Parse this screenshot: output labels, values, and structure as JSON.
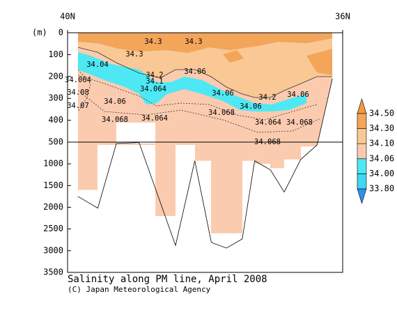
{
  "chart_data": {
    "type": "contour",
    "title": "Salinity along PM line, April 2008",
    "credit": "(C) Japan Meteorological Agency",
    "y_label": "(m)",
    "xlim": [
      40,
      36
    ],
    "xticks": [
      {
        "value": 40,
        "label": "40N"
      },
      {
        "value": 36,
        "label": "36N"
      }
    ],
    "ylim": [
      0,
      3500
    ],
    "yticks": [
      0,
      100,
      200,
      300,
      400,
      500,
      1000,
      1500,
      2000,
      2500,
      3000,
      3500
    ],
    "bottom_profile": {
      "x": [
        39.85,
        39.56,
        39.29,
        38.96,
        38.43,
        38.15,
        37.91,
        37.69,
        37.46,
        37.28,
        37.05,
        36.85,
        36.61,
        36.37,
        36.15
      ],
      "values": [
        1750,
        2020,
        530,
        510,
        2880,
        930,
        2810,
        2940,
        2730,
        930,
        1140,
        1650,
        900,
        560,
        210
      ]
    },
    "contour_labels": [
      34.3,
      34.3,
      34.3,
      34.04,
      34.2,
      34.1,
      34.064,
      34.06,
      34.06,
      34.06,
      34.2,
      34.06,
      34.06,
      34.064,
      34.068,
      34.064,
      34.068,
      34.068,
      34.068,
      34.064,
      34.08,
      34.07
    ],
    "colorbar": {
      "levels": [
        {
          "value": 33.8,
          "label": "33.80"
        },
        {
          "value": 34.0,
          "label": "34.00"
        },
        34.06,
        {
          "value": 34.1,
          "label": "34.10"
        },
        {
          "value": 34.3,
          "label": "34.30"
        },
        {
          "value": 34.5,
          "label": "34.50"
        }
      ],
      "colors": [
        "#2f8ff0",
        "#3fd8f0",
        "#4ee8f4",
        "#fbcbb0",
        "#f9c894",
        "#f3a55a",
        "#f39a40"
      ]
    }
  }
}
